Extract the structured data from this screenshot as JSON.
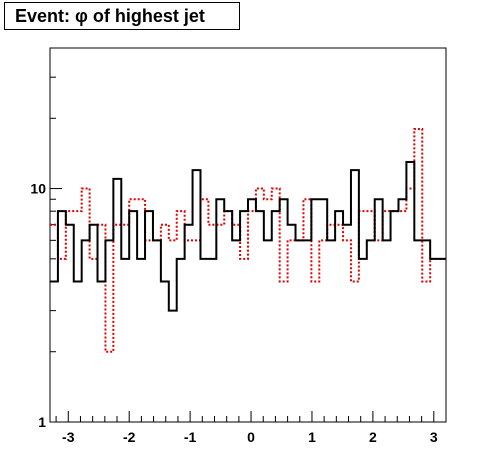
{
  "chart_data": {
    "type": "histogram-step",
    "title": "Event: φ of highest jet",
    "xlim": [
      -3.3,
      3.2
    ],
    "ylim": [
      1,
      40
    ],
    "y_scale": "log",
    "x_ticks": [
      "-3",
      "-2",
      "-1",
      "0",
      "1",
      "2",
      "3"
    ],
    "x_tick_values": [
      -3,
      -2,
      -1,
      0,
      1,
      2,
      3
    ],
    "y_ticks": [
      "1",
      "10"
    ],
    "y_tick_values": [
      1,
      10
    ],
    "bin_edges": [
      -3.3,
      -3.17,
      -3.04,
      -2.91,
      -2.78,
      -2.65,
      -2.52,
      -2.39,
      -2.26,
      -2.13,
      -2.0,
      -1.87,
      -1.74,
      -1.61,
      -1.48,
      -1.35,
      -1.22,
      -1.09,
      -0.96,
      -0.83,
      -0.7,
      -0.57,
      -0.44,
      -0.31,
      -0.18,
      -0.05,
      0.08,
      0.21,
      0.34,
      0.47,
      0.6,
      0.73,
      0.86,
      0.99,
      1.12,
      1.25,
      1.38,
      1.51,
      1.64,
      1.77,
      1.9,
      2.03,
      2.16,
      2.29,
      2.42,
      2.55,
      2.68,
      2.81,
      2.94,
      3.07,
      3.2
    ],
    "series": [
      {
        "color": "#000000",
        "style": "solid",
        "values": [
          4,
          8,
          7,
          4,
          6,
          7,
          4,
          6,
          11,
          5,
          8,
          5,
          8,
          6,
          4,
          3,
          5,
          7,
          12,
          5,
          5,
          9,
          8,
          6,
          8,
          9,
          8,
          6,
          8,
          9,
          7,
          6,
          6,
          9,
          9,
          6,
          8,
          7,
          12,
          5,
          6,
          9,
          6,
          8,
          9,
          13,
          6,
          6,
          5,
          5
        ]
      },
      {
        "color": "#e00000",
        "style": "dotted",
        "values": [
          7,
          5,
          8,
          8,
          10,
          5,
          7,
          2,
          7,
          7,
          9,
          9,
          6,
          6,
          7,
          6,
          8,
          6,
          6,
          9,
          7,
          7,
          8,
          7,
          5,
          8,
          10,
          9,
          10,
          4,
          6,
          6,
          9,
          4,
          6,
          7,
          7,
          6,
          4,
          8,
          8,
          6,
          8,
          8,
          8,
          10,
          18,
          4,
          5,
          5
        ]
      }
    ]
  }
}
